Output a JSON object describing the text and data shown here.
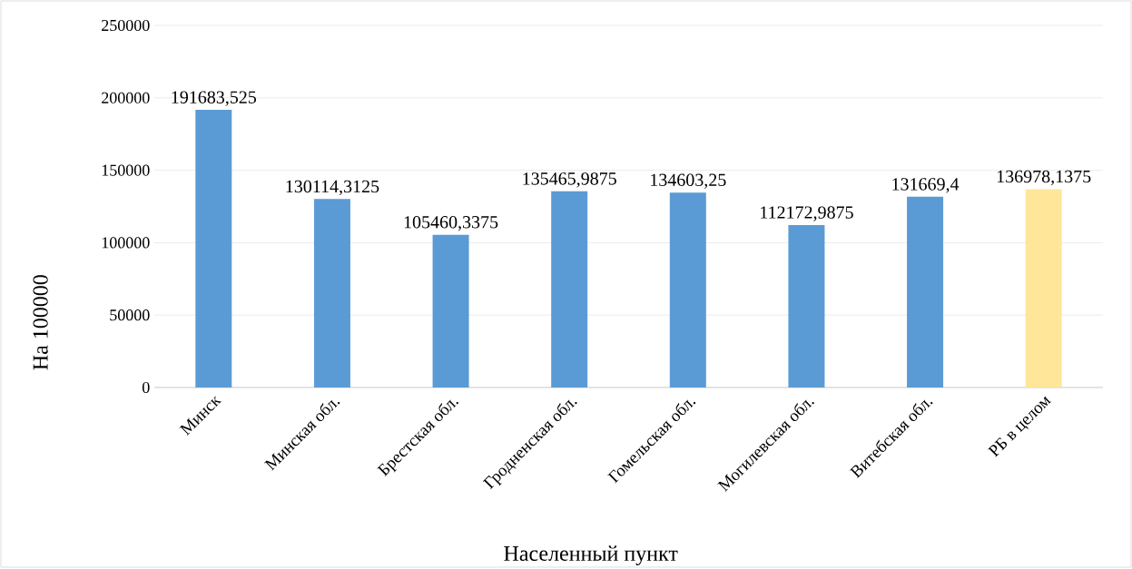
{
  "chart_data": {
    "type": "bar",
    "xlabel": "Населенный пункт",
    "ylabel": "На 100000",
    "categories": [
      "Минск",
      "Минская обл.",
      "Брестская обл.",
      "Гродненская обл.",
      "Гомельская обл.",
      "Могилевская обл.",
      "Витебская обл.",
      "РБ в целом"
    ],
    "values": [
      191683.525,
      130114.3125,
      105460.3375,
      135465.9875,
      134603.25,
      112172.9875,
      131669.4,
      136978.1375
    ],
    "value_labels": [
      "191683,525",
      "130114,3125",
      "105460,3375",
      "135465,9875",
      "134603,25",
      "112172,9875",
      "131669,4",
      "136978,1375"
    ],
    "colors": [
      "#5b9bd5",
      "#5b9bd5",
      "#5b9bd5",
      "#5b9bd5",
      "#5b9bd5",
      "#5b9bd5",
      "#5b9bd5",
      "#ffe699"
    ],
    "ylim": [
      0,
      250000
    ],
    "yticks": [
      0,
      50000,
      100000,
      150000,
      200000,
      250000
    ],
    "grid": "y"
  }
}
